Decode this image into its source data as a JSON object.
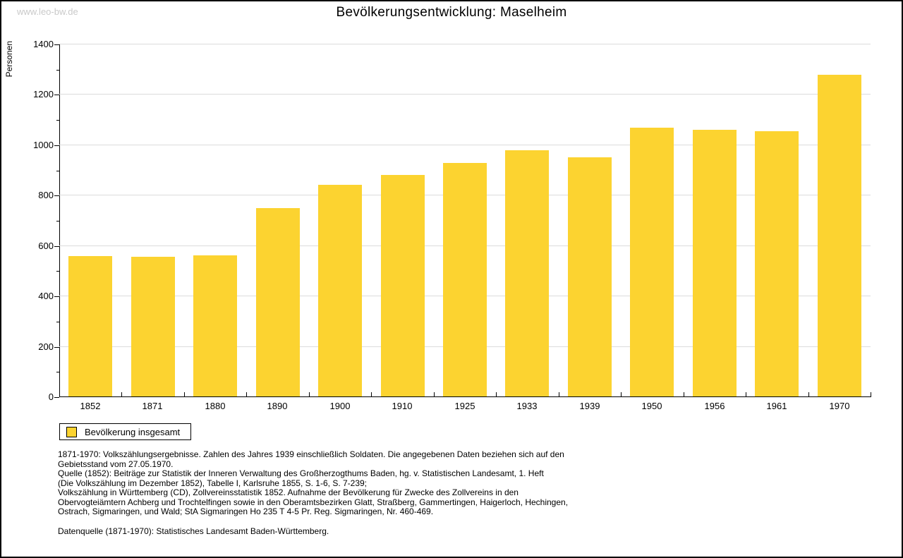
{
  "watermark": "www.leo-bw.de",
  "chart_data": {
    "type": "bar",
    "title": "Bevölkerungsentwicklung: Maselheim",
    "xlabel": "",
    "ylabel": "Personen",
    "categories": [
      "1852",
      "1871",
      "1880",
      "1890",
      "1900",
      "1910",
      "1925",
      "1933",
      "1939",
      "1950",
      "1956",
      "1961",
      "1970"
    ],
    "values": [
      557,
      554,
      559,
      748,
      840,
      879,
      926,
      977,
      950,
      1066,
      1057,
      1053,
      1278
    ],
    "ylim": [
      0,
      1400
    ],
    "ytick_step": 200,
    "yminor_step": 100,
    "grid": true,
    "legend_position": "bottom-left",
    "bar_color": "#FCD330"
  },
  "legend": {
    "items": [
      {
        "label": "Bevölkerung insgesamt",
        "color": "#FCD330"
      }
    ]
  },
  "footnotes": {
    "lines": [
      "1871-1970: Volkszählungsergebnisse. Zahlen des Jahres 1939 einschließlich Soldaten. Die angegebenen Daten beziehen sich auf den",
      "Gebietsstand vom 27.05.1970.",
      "Quelle (1852): Beiträge zur Statistik der Inneren Verwaltung des Großherzogthums Baden, hg. v. Statistischen Landesamt, 1. Heft",
      "(Die Volkszählung im Dezember 1852), Tabelle I, Karlsruhe 1855, S. 1-6, S. 7-239;",
      "Volkszählung in Württemberg (CD), Zollvereinsstatistik 1852. Aufnahme der Bevölkerung für Zwecke des Zollvereins in den",
      "Obervogteiämtern Achberg und Trochtelfingen sowie in den Oberamtsbezirken Glatt, Straßberg, Gammertingen, Haigerloch, Hechingen,",
      "Ostrach, Sigmaringen, und Wald; StA Sigmaringen Ho 235 T 4-5 Pr. Reg. Sigmaringen, Nr. 460-469."
    ],
    "datasource": "Datenquelle (1871-1970): Statistisches Landesamt Baden-Württemberg."
  },
  "colors": {
    "bar": "#FCD330",
    "grid": "#dcdcdc",
    "axis": "#000000",
    "watermark": "#c9c9c9",
    "background": "#ffffff"
  }
}
